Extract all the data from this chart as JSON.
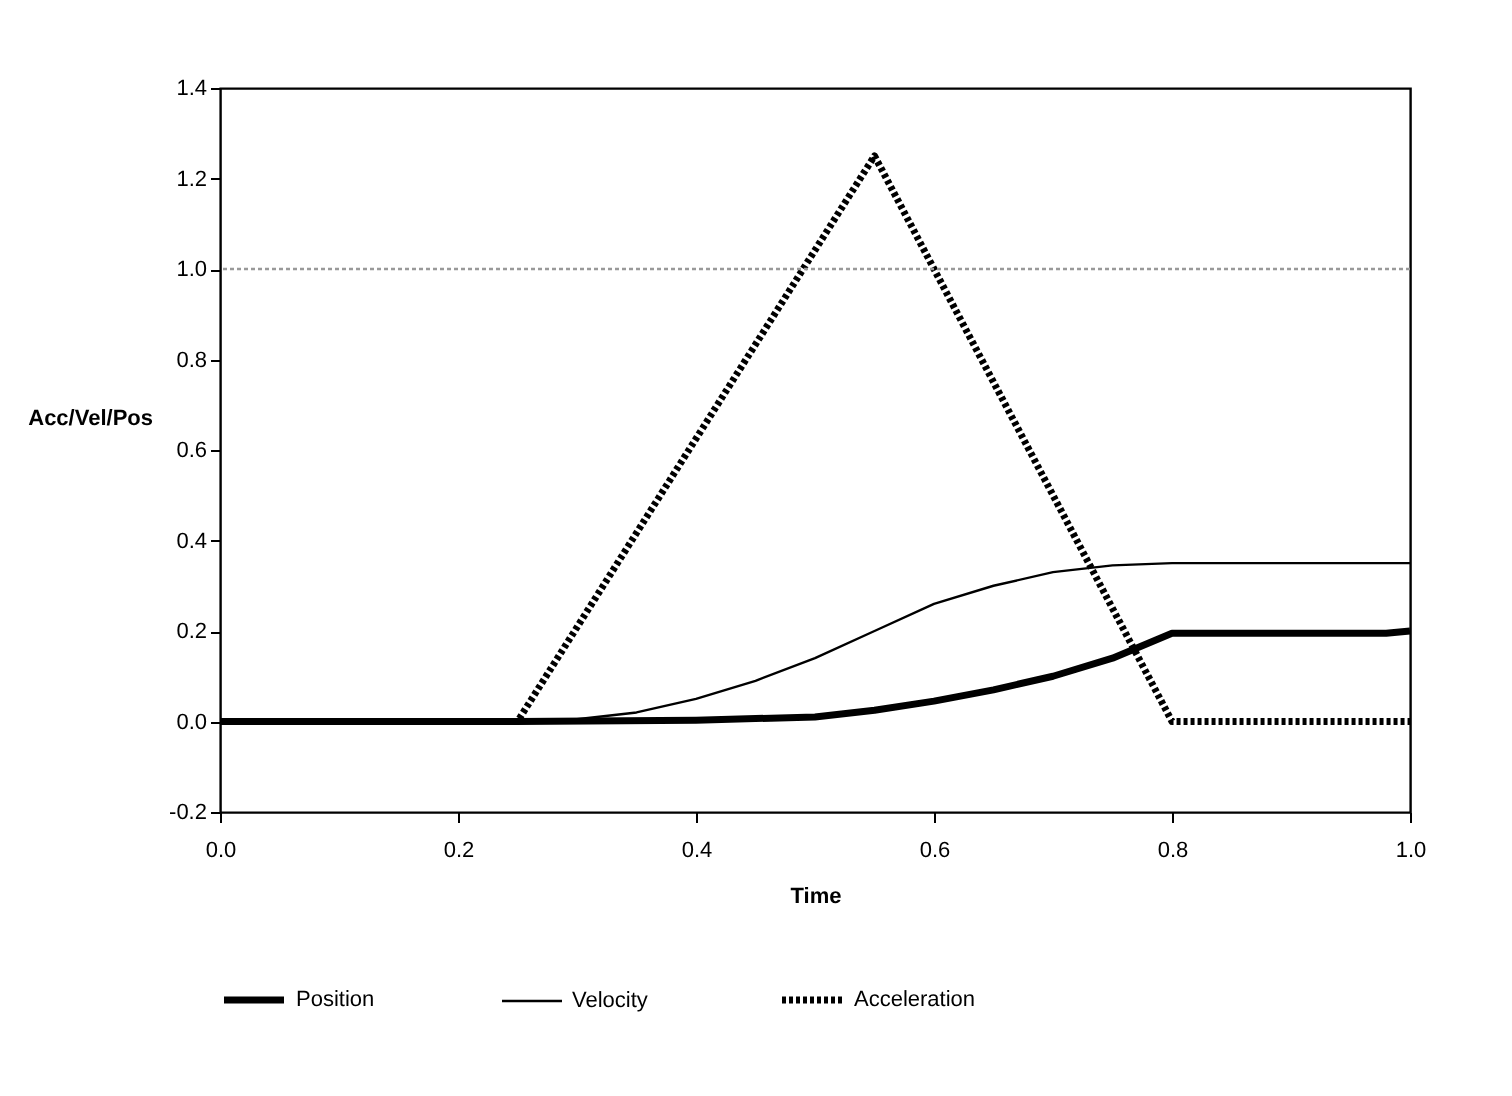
{
  "chart_data": {
    "type": "line",
    "xlabel": "Time",
    "ylabel": "Acc/Vel/Pos",
    "xlim": [
      0,
      1.0
    ],
    "xticks": [
      {
        "value": 0,
        "label": "0.0"
      },
      0.2,
      0.4,
      0.6,
      0.8,
      {
        "value": 1,
        "label": "1.0"
      }
    ],
    "ylim": [
      -0.2,
      1.4
    ],
    "yticks": [
      -0.2,
      {
        "value": 0,
        "label": "0.0"
      },
      0.2,
      0.4,
      0.6,
      0.8,
      {
        "value": 1,
        "label": "1.0"
      },
      1.2,
      1.4
    ],
    "grid": false,
    "legend": "bottom",
    "marker": "none",
    "ref_lines": [
      {
        "axis": "y",
        "value": 1.0,
        "line_style": "dotted",
        "color": "#999999"
      }
    ],
    "series": [
      {
        "name": "Position",
        "color": "#000000",
        "line_style": "solid",
        "x": [
          0,
          0.25,
          0.4,
          0.5,
          0.55,
          0.6,
          0.65,
          0.7,
          0.75,
          0.8,
          0.98,
          1.0
        ],
        "values": [
          0,
          0,
          0.003,
          0.01,
          0.025,
          0.045,
          0.07,
          0.1,
          0.14,
          0.195,
          0.195,
          0.2
        ]
      },
      {
        "name": "Velocity",
        "color": "#000000",
        "line_style": "solid",
        "x": [
          0,
          0.25,
          0.3,
          0.35,
          0.4,
          0.45,
          0.5,
          0.55,
          0.6,
          0.65,
          0.7,
          0.75,
          0.8,
          1.0
        ],
        "values": [
          0,
          0,
          0.005,
          0.02,
          0.05,
          0.09,
          0.14,
          0.2,
          0.26,
          0.3,
          0.33,
          0.345,
          0.35,
          0.35
        ]
      },
      {
        "name": "Acceleration",
        "color": "#000000",
        "line_style": "dotted",
        "x": [
          0,
          0.25,
          0.55,
          0.8,
          1.0
        ],
        "values": [
          0,
          0,
          1.25,
          0,
          0
        ]
      }
    ]
  }
}
